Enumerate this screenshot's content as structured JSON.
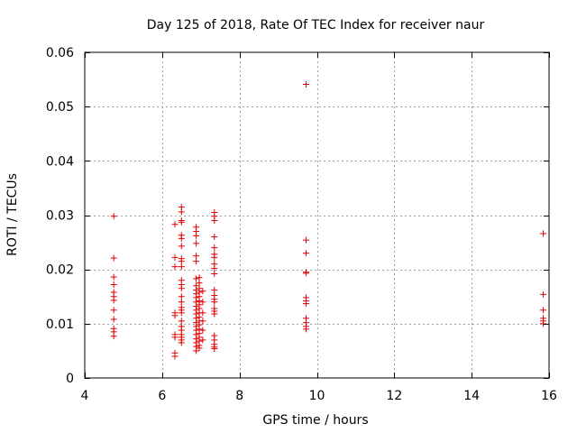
{
  "chart_data": {
    "type": "scatter",
    "title": "Day 125 of 2018, Rate Of TEC Index for receiver naur",
    "xlabel": "GPS time / hours",
    "ylabel": "ROTI / TECUs",
    "xlim": [
      4,
      16
    ],
    "ylim": [
      0,
      0.06
    ],
    "xticks": [
      "4",
      "6",
      "8",
      "10",
      "12",
      "14",
      "16"
    ],
    "yticks": [
      "0",
      "0.01",
      "0.02",
      "0.03",
      "0.04",
      "0.05",
      "0.06"
    ],
    "grid": true,
    "marker_color": "#e00000",
    "series": [
      {
        "points": [
          [
            4.75,
            0.0298
          ],
          [
            4.75,
            0.0221
          ],
          [
            4.75,
            0.0186
          ],
          [
            4.75,
            0.0172
          ],
          [
            4.75,
            0.0158
          ],
          [
            4.75,
            0.015
          ],
          [
            4.75,
            0.0143
          ],
          [
            4.75,
            0.0125
          ],
          [
            4.75,
            0.0108
          ],
          [
            4.75,
            0.0091
          ],
          [
            4.75,
            0.0085
          ],
          [
            4.75,
            0.0077
          ],
          [
            6.33,
            0.0283
          ],
          [
            6.33,
            0.0222
          ],
          [
            6.33,
            0.0205
          ],
          [
            6.33,
            0.012
          ],
          [
            6.33,
            0.0115
          ],
          [
            6.33,
            0.008
          ],
          [
            6.33,
            0.0075
          ],
          [
            6.33,
            0.0046
          ],
          [
            6.33,
            0.004
          ],
          [
            6.5,
            0.0315
          ],
          [
            6.5,
            0.0306
          ],
          [
            6.5,
            0.029
          ],
          [
            6.5,
            0.0287
          ],
          [
            6.5,
            0.0263
          ],
          [
            6.5,
            0.0257
          ],
          [
            6.5,
            0.0243
          ],
          [
            6.5,
            0.022
          ],
          [
            6.5,
            0.0215
          ],
          [
            6.5,
            0.0205
          ],
          [
            6.5,
            0.018
          ],
          [
            6.5,
            0.0172
          ],
          [
            6.5,
            0.0165
          ],
          [
            6.5,
            0.015
          ],
          [
            6.5,
            0.014
          ],
          [
            6.5,
            0.013
          ],
          [
            6.5,
            0.0125
          ],
          [
            6.5,
            0.012
          ],
          [
            6.5,
            0.0105
          ],
          [
            6.5,
            0.0095
          ],
          [
            6.5,
            0.0088
          ],
          [
            6.5,
            0.008
          ],
          [
            6.5,
            0.0075
          ],
          [
            6.5,
            0.007
          ],
          [
            6.5,
            0.0065
          ],
          [
            6.88,
            0.0278
          ],
          [
            6.88,
            0.027
          ],
          [
            6.88,
            0.0262
          ],
          [
            6.88,
            0.0248
          ],
          [
            6.88,
            0.0225
          ],
          [
            6.88,
            0.0215
          ],
          [
            6.88,
            0.0183
          ],
          [
            6.88,
            0.017
          ],
          [
            6.88,
            0.0162
          ],
          [
            6.88,
            0.0155
          ],
          [
            6.88,
            0.0148
          ],
          [
            6.88,
            0.014
          ],
          [
            6.88,
            0.0132
          ],
          [
            6.88,
            0.0125
          ],
          [
            6.88,
            0.0118
          ],
          [
            6.88,
            0.011
          ],
          [
            6.88,
            0.0102
          ],
          [
            6.88,
            0.0095
          ],
          [
            6.88,
            0.0088
          ],
          [
            6.88,
            0.008
          ],
          [
            6.88,
            0.0072
          ],
          [
            6.88,
            0.0065
          ],
          [
            6.88,
            0.0058
          ],
          [
            6.88,
            0.005
          ],
          [
            6.96,
            0.0185
          ],
          [
            6.96,
            0.0175
          ],
          [
            6.96,
            0.0165
          ],
          [
            6.96,
            0.0158
          ],
          [
            6.96,
            0.015
          ],
          [
            6.96,
            0.0142
          ],
          [
            6.96,
            0.0135
          ],
          [
            6.96,
            0.0128
          ],
          [
            6.96,
            0.012
          ],
          [
            6.96,
            0.0112
          ],
          [
            6.96,
            0.0105
          ],
          [
            6.96,
            0.0098
          ],
          [
            6.96,
            0.009
          ],
          [
            6.96,
            0.0082
          ],
          [
            6.96,
            0.0075
          ],
          [
            6.96,
            0.0068
          ],
          [
            6.96,
            0.006
          ],
          [
            6.96,
            0.0055
          ],
          [
            7.05,
            0.016
          ],
          [
            7.05,
            0.014
          ],
          [
            7.05,
            0.012
          ],
          [
            7.05,
            0.0105
          ],
          [
            7.05,
            0.0088
          ],
          [
            7.05,
            0.007
          ],
          [
            7.35,
            0.0305
          ],
          [
            7.35,
            0.0298
          ],
          [
            7.35,
            0.029
          ],
          [
            7.35,
            0.026
          ],
          [
            7.35,
            0.024
          ],
          [
            7.35,
            0.0228
          ],
          [
            7.35,
            0.0222
          ],
          [
            7.35,
            0.021
          ],
          [
            7.35,
            0.0202
          ],
          [
            7.35,
            0.0192
          ],
          [
            7.35,
            0.0162
          ],
          [
            7.35,
            0.0152
          ],
          [
            7.35,
            0.0145
          ],
          [
            7.35,
            0.014
          ],
          [
            7.35,
            0.0128
          ],
          [
            7.35,
            0.0123
          ],
          [
            7.35,
            0.0118
          ],
          [
            7.35,
            0.0078
          ],
          [
            7.35,
            0.007
          ],
          [
            7.35,
            0.0062
          ],
          [
            7.35,
            0.0057
          ],
          [
            7.35,
            0.0054
          ],
          [
            9.72,
            0.0541
          ],
          [
            9.72,
            0.0254
          ],
          [
            9.72,
            0.023
          ],
          [
            9.72,
            0.0195
          ],
          [
            9.72,
            0.0193
          ],
          [
            9.72,
            0.0148
          ],
          [
            9.72,
            0.0142
          ],
          [
            9.72,
            0.0137
          ],
          [
            9.72,
            0.011
          ],
          [
            9.72,
            0.0102
          ],
          [
            9.72,
            0.0095
          ],
          [
            9.72,
            0.009
          ],
          [
            15.85,
            0.0266
          ],
          [
            15.85,
            0.0154
          ],
          [
            15.85,
            0.0125
          ],
          [
            15.85,
            0.011
          ],
          [
            15.85,
            0.0105
          ],
          [
            15.85,
            0.01
          ]
        ]
      }
    ]
  }
}
